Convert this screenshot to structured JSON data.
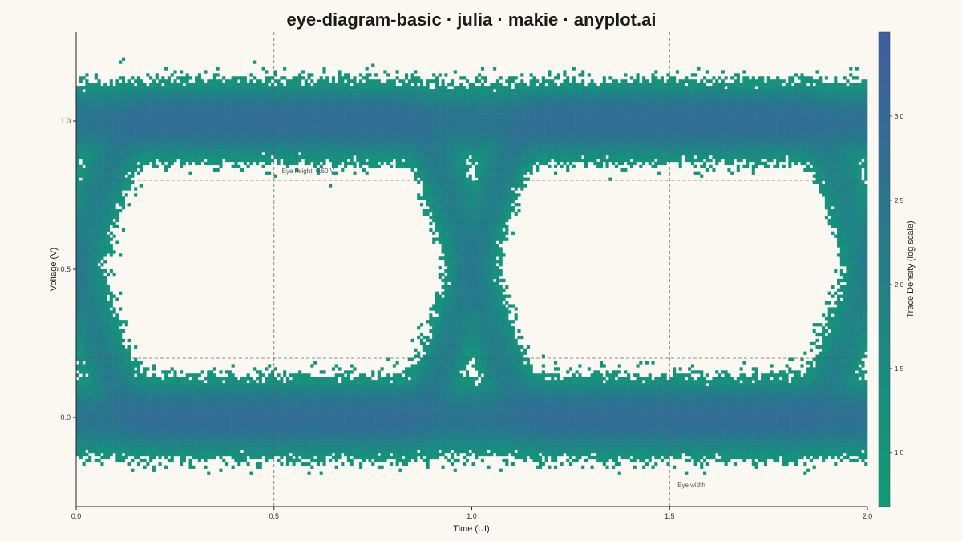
{
  "chart_data": {
    "type": "heatmap",
    "title": "eye-diagram-basic · julia · makie · anyplot.ai",
    "xlabel": "Time (UI)",
    "ylabel": "Voltage (V)",
    "xlim": [
      0.0,
      2.0
    ],
    "ylim": [
      -0.3,
      1.3
    ],
    "x_ticks": [
      "0.0",
      "0.5",
      "1.0",
      "1.5",
      "2.0"
    ],
    "x_tick_values": [
      0.0,
      0.5,
      1.0,
      1.5,
      2.0
    ],
    "y_ticks": [
      "0.0",
      "0.5",
      "1.0"
    ],
    "y_tick_values": [
      0.0,
      0.5,
      1.0
    ],
    "colorbar": {
      "label": "Trace Density (log scale)",
      "range": [
        0.68,
        3.5
      ],
      "ticks": [
        "1.0",
        "1.5",
        "2.0",
        "2.5",
        "3.0"
      ],
      "tick_values": [
        1.0,
        1.5,
        2.0,
        2.5,
        3.0
      ],
      "color_low": "#0f9c76",
      "color_high": "#405ea2"
    },
    "signal": {
      "levels_v": [
        0.0,
        1.0
      ],
      "level_noise_sd_v": 0.045,
      "transition_centers_ui": [
        0.0,
        1.0,
        2.0
      ],
      "rise_time_ui": 0.33,
      "jitter_sd_ui": 0.022
    },
    "reference_lines": {
      "vertical_ui": [
        0.5,
        1.5
      ],
      "horizontal_v": [
        0.2,
        0.8
      ]
    },
    "annotations": [
      {
        "text": "Eye height: 0.60 V",
        "x": 0.52,
        "y": 0.825
      },
      {
        "text": "Eye width",
        "x": 1.52,
        "y": -0.235
      }
    ],
    "grid": false
  }
}
